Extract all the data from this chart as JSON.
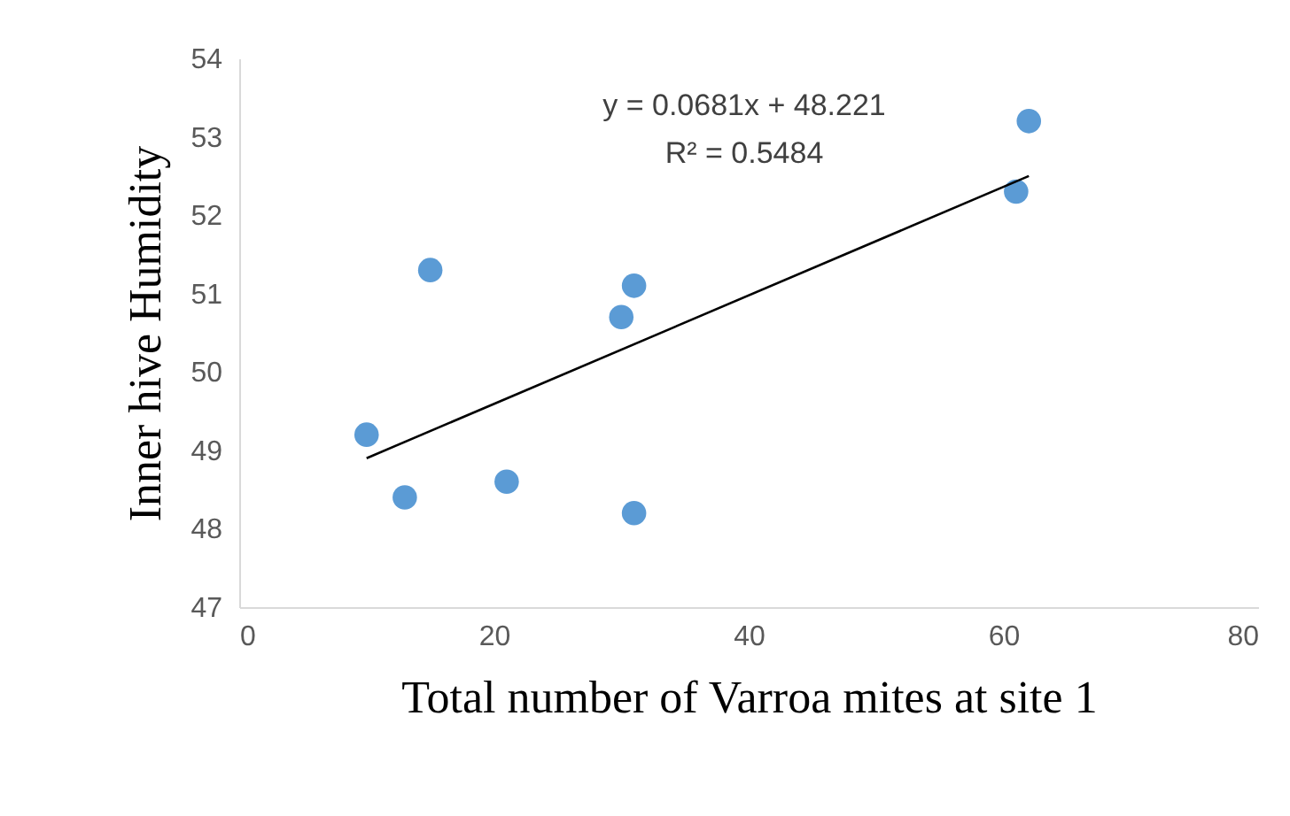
{
  "chart_data": {
    "type": "scatter",
    "xlabel": "Total number of Varroa mites at site 1",
    "ylabel": "Inner hive Humidity",
    "xlim": [
      0,
      80
    ],
    "xticks": [
      0,
      20,
      40,
      60,
      80
    ],
    "ylim": [
      47,
      54
    ],
    "yticks": [
      47,
      48,
      49,
      50,
      51,
      52,
      53,
      54
    ],
    "grid": false,
    "series": [
      {
        "marker": "circle",
        "color": "#5b9bd5",
        "x": [
          10,
          15,
          13,
          21,
          31,
          30,
          31,
          61,
          62
        ],
        "values": [
          49.2,
          51.3,
          48.4,
          48.6,
          48.2,
          50.7,
          51.1,
          52.3,
          53.2
        ]
      },
      {
        "type": "line",
        "marker": "none",
        "color": "#000000",
        "line_style": "solid",
        "x": [
          10,
          62
        ],
        "values": [
          48.9,
          52.5
        ]
      }
    ],
    "annotations": [
      "y = 0.0681x + 48.221",
      "R² = 0.5484"
    ]
  }
}
